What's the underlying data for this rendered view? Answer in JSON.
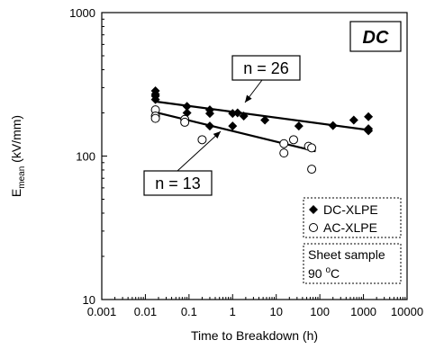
{
  "chart_data": {
    "type": "scatter",
    "xscale": "log",
    "yscale": "log",
    "xlim": [
      0.001,
      10000
    ],
    "ylim": [
      10,
      1000
    ],
    "xlabel": "Time to Breakdown (h)",
    "ylabel_main": "E",
    "ylabel_sub": "mean",
    "ylabel_unit": " (kV/mm)",
    "x_ticks": [
      "0.001",
      "0.01",
      "0.1",
      "1",
      "10",
      "100",
      "1000",
      "10000"
    ],
    "y_ticks": [
      "10",
      "100",
      "1000"
    ],
    "corner_label": "DC",
    "series": [
      {
        "name": "DC-XLPE",
        "marker": "filled-diamond",
        "points": [
          [
            0.017,
            285
          ],
          [
            0.017,
            270
          ],
          [
            0.017,
            262
          ],
          [
            0.017,
            248
          ],
          [
            0.09,
            222
          ],
          [
            0.09,
            200
          ],
          [
            0.3,
            210
          ],
          [
            0.3,
            198
          ],
          [
            0.3,
            162
          ],
          [
            1,
            198
          ],
          [
            1,
            162
          ],
          [
            1.3,
            200
          ],
          [
            1.8,
            190
          ],
          [
            5.5,
            178
          ],
          [
            33,
            162
          ],
          [
            200,
            163
          ],
          [
            600,
            178
          ],
          [
            1300,
            188
          ],
          [
            1300,
            155
          ],
          [
            1300,
            150
          ]
        ],
        "fit": {
          "x": [
            0.017,
            1300
          ],
          "y": [
            240,
            152
          ]
        }
      },
      {
        "name": "AC-XLPE",
        "marker": "open-circle",
        "points": [
          [
            0.017,
            210
          ],
          [
            0.017,
            190
          ],
          [
            0.017,
            183
          ],
          [
            0.08,
            180
          ],
          [
            0.08,
            172
          ],
          [
            0.2,
            130
          ],
          [
            15,
            122
          ],
          [
            15,
            105
          ],
          [
            25,
            130
          ],
          [
            55,
            117
          ],
          [
            65,
            114
          ],
          [
            65,
            81
          ]
        ],
        "fit": {
          "x": [
            0.017,
            80
          ],
          "y": [
            202,
            108
          ]
        }
      }
    ],
    "annotations": [
      {
        "text": "n = 26",
        "series": "DC-XLPE"
      },
      {
        "text": "n = 13",
        "series": "AC-XLPE"
      }
    ],
    "sample_note": [
      "Sheet sample",
      "90 ",
      "o",
      "C"
    ],
    "legend_placement": "lower-right",
    "grid": false
  }
}
